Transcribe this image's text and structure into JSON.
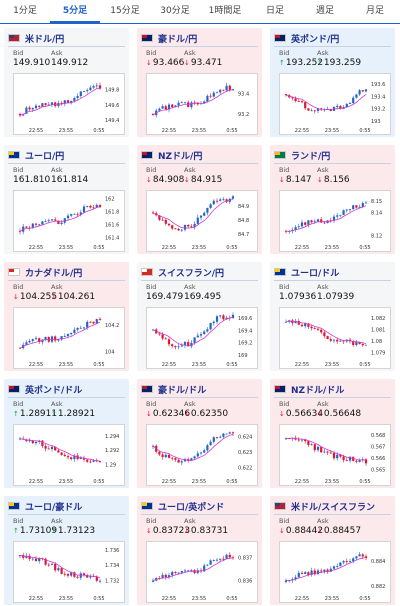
{
  "tabs": [
    {
      "label": "1分足",
      "active": false
    },
    {
      "label": "5分足",
      "active": true
    },
    {
      "label": "15分足",
      "active": false
    },
    {
      "label": "30分足",
      "active": false
    },
    {
      "label": "1時間足",
      "active": false
    },
    {
      "label": "日足",
      "active": false
    },
    {
      "label": "週足",
      "active": false
    },
    {
      "label": "月足",
      "active": false
    }
  ],
  "labels": {
    "bid": "Bid",
    "ask": "Ask"
  },
  "x_ticks": [
    "22:55",
    "23:55",
    "0:55"
  ],
  "colors": {
    "up_card": "#e7f1fb",
    "down_card": "#fbe9ec",
    "flat_card": "#f5f6f8",
    "candle_up": "#2166c4",
    "candle_down": "#e0142c",
    "ma_line": "#d33bd3"
  },
  "cards": [
    {
      "name": "米ドル/円",
      "flag": "us",
      "direction": "flat",
      "bid_arrow": "",
      "ask_arrow": "",
      "bid": "149.910",
      "ask": "149.912",
      "chart_data": {
        "type": "candlestick",
        "y_ticks": [
          "149.8",
          "149.6",
          "149.4"
        ],
        "ylim": [
          149.35,
          149.95
        ],
        "trend": "up"
      }
    },
    {
      "name": "豪ドル/円",
      "flag": "au",
      "direction": "down",
      "bid_arrow": "↓",
      "ask_arrow": "↓",
      "bid": "93.466",
      "ask": "93.471",
      "chart_data": {
        "type": "candlestick",
        "y_ticks": [
          "93.4",
          "93.2"
        ],
        "ylim": [
          93.1,
          93.55
        ],
        "trend": "up"
      }
    },
    {
      "name": "英ポンド/円",
      "flag": "gb",
      "direction": "up",
      "bid_arrow": "↑",
      "ask_arrow": "↑",
      "bid": "193.252",
      "ask": "193.259",
      "chart_data": {
        "type": "candlestick",
        "y_ticks": [
          "193.6",
          "193.4",
          "193.2",
          "193"
        ],
        "ylim": [
          192.95,
          193.7
        ],
        "trend": "dip"
      }
    },
    {
      "name": "ユーロ/円",
      "flag": "eu",
      "direction": "flat",
      "bid_arrow": "",
      "ask_arrow": "",
      "bid": "161.810",
      "ask": "161.814",
      "chart_data": {
        "type": "candlestick",
        "y_ticks": [
          "162",
          "161.8",
          "161.6",
          "161.4"
        ],
        "ylim": [
          161.35,
          162.05
        ],
        "trend": "up"
      }
    },
    {
      "name": "NZドル/円",
      "flag": "nz",
      "direction": "down",
      "bid_arrow": "↓",
      "ask_arrow": "↓",
      "bid": "84.908",
      "ask": "84.915",
      "chart_data": {
        "type": "candlestick",
        "y_ticks": [
          "84.9",
          "84.8",
          "84.7"
        ],
        "ylim": [
          84.65,
          84.98
        ],
        "trend": "vup"
      }
    },
    {
      "name": "ランド/円",
      "flag": "za",
      "direction": "down",
      "bid_arrow": "↓",
      "ask_arrow": "↓",
      "bid": "8.147",
      "ask": "8.156",
      "chart_data": {
        "type": "candlestick",
        "y_ticks": [
          "8.15",
          "8.14",
          "8.12"
        ],
        "ylim": [
          8.115,
          8.155
        ],
        "trend": "up"
      }
    },
    {
      "name": "カナダドル/円",
      "flag": "ca",
      "direction": "down",
      "bid_arrow": "↓",
      "ask_arrow": "↓",
      "bid": "104.255",
      "ask": "104.261",
      "chart_data": {
        "type": "candlestick",
        "y_ticks": [
          "104.2",
          "104"
        ],
        "ylim": [
          103.95,
          104.3
        ],
        "trend": "up"
      }
    },
    {
      "name": "スイスフラン/円",
      "flag": "ch",
      "direction": "flat",
      "bid_arrow": "",
      "ask_arrow": "",
      "bid": "169.479",
      "ask": "169.495",
      "chart_data": {
        "type": "candlestick",
        "y_ticks": [
          "169.6",
          "169.4",
          "169.2",
          "169"
        ],
        "ylim": [
          168.95,
          169.7
        ],
        "trend": "vup"
      }
    },
    {
      "name": "ユーロ/ドル",
      "flag": "eu",
      "direction": "flat",
      "bid_arrow": "",
      "ask_arrow": "",
      "bid": "1.07936",
      "ask": "1.07939",
      "chart_data": {
        "type": "candlestick",
        "y_ticks": [
          "1.082",
          "1.081",
          "1.08",
          "1.079"
        ],
        "ylim": [
          1.0785,
          1.0825
        ],
        "trend": "down"
      }
    },
    {
      "name": "英ポンド/ドル",
      "flag": "gb",
      "direction": "up",
      "bid_arrow": "↑",
      "ask_arrow": "↑",
      "bid": "1.28911",
      "ask": "1.28921",
      "chart_data": {
        "type": "candlestick",
        "y_ticks": [
          "1.294",
          "1.292",
          "1.29"
        ],
        "ylim": [
          1.2885,
          1.295
        ],
        "trend": "down"
      }
    },
    {
      "name": "豪ドル/ドル",
      "flag": "au",
      "direction": "down",
      "bid_arrow": "↓",
      "ask_arrow": "↓",
      "bid": "0.62346",
      "ask": "0.62350",
      "chart_data": {
        "type": "candlestick",
        "y_ticks": [
          "0.624",
          "0.623",
          "0.622"
        ],
        "ylim": [
          0.6215,
          0.6245
        ],
        "trend": "vup"
      }
    },
    {
      "name": "NZドル/ドル",
      "flag": "nz",
      "direction": "down",
      "bid_arrow": "↓",
      "ask_arrow": "↓",
      "bid": "0.56634",
      "ask": "0.56648",
      "chart_data": {
        "type": "candlestick",
        "y_ticks": [
          "0.568",
          "0.567",
          "0.566",
          "0.565"
        ],
        "ylim": [
          0.5645,
          0.5685
        ],
        "trend": "down"
      }
    },
    {
      "name": "ユーロ/豪ドル",
      "flag": "eu",
      "direction": "up",
      "bid_arrow": "↑",
      "ask_arrow": "↑",
      "bid": "1.73109",
      "ask": "1.73123",
      "chart_data": {
        "type": "candlestick",
        "y_ticks": [
          "1.736",
          "1.734",
          "1.732"
        ],
        "ylim": [
          1.7305,
          1.7365
        ],
        "trend": "down"
      }
    },
    {
      "name": "ユーロ/英ポンド",
      "flag": "eu",
      "direction": "down",
      "bid_arrow": "↓",
      "ask_arrow": "↓",
      "bid": "0.83723",
      "ask": "0.83731",
      "chart_data": {
        "type": "candlestick",
        "y_ticks": [
          "0.837",
          "0.836"
        ],
        "ylim": [
          0.8355,
          0.8375
        ],
        "trend": "up"
      }
    },
    {
      "name": "米ドル/スイスフラン",
      "flag": "us",
      "direction": "down",
      "bid_arrow": "↓",
      "ask_arrow": "↓",
      "bid": "0.88442",
      "ask": "0.88457",
      "chart_data": {
        "type": "candlestick",
        "y_ticks": [
          "0.884",
          "0.882"
        ],
        "ylim": [
          0.8815,
          0.8852
        ],
        "trend": "up"
      }
    }
  ]
}
